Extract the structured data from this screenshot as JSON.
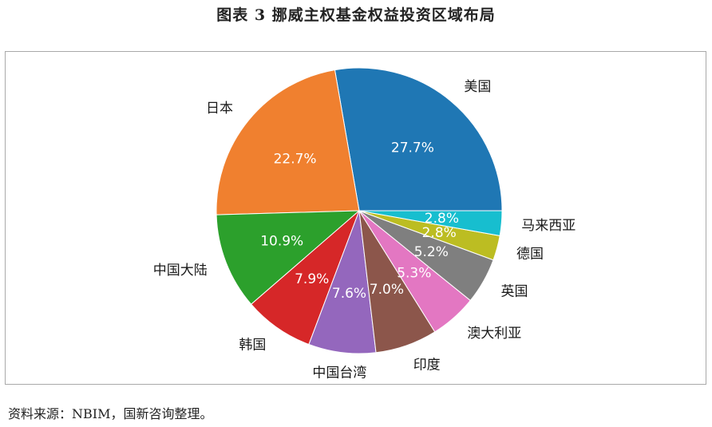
{
  "title": "图表 3  挪威主权基金权益投资区域布局",
  "source": "资料来源：NBIM，国新咨询整理。",
  "chart_data": {
    "type": "pie",
    "title": "",
    "start_angle_deg": 0,
    "direction": "counterclockwise",
    "slices": [
      {
        "label": "美国",
        "value": 27.7,
        "value_label": "27.7%",
        "color": "#1f77b4"
      },
      {
        "label": "日本",
        "value": 22.7,
        "value_label": "22.7%",
        "color": "#f0802f"
      },
      {
        "label": "中国大陆",
        "value": 10.9,
        "value_label": "10.9%",
        "color": "#2ca02c"
      },
      {
        "label": "韩国",
        "value": 7.9,
        "value_label": "7.9%",
        "color": "#d62728"
      },
      {
        "label": "中国台湾",
        "value": 7.6,
        "value_label": "7.6%",
        "color": "#9467bd"
      },
      {
        "label": "印度",
        "value": 7.0,
        "value_label": "7.0%",
        "color": "#8c564b"
      },
      {
        "label": "澳大利亚",
        "value": 5.3,
        "value_label": "5.3%",
        "color": "#e377c2"
      },
      {
        "label": "英国",
        "value": 5.2,
        "value_label": "5.2%",
        "color": "#7f7f7f"
      },
      {
        "label": "德国",
        "value": 2.8,
        "value_label": "2.8%",
        "color": "#bcbd22"
      },
      {
        "label": "马来西亚",
        "value": 2.8,
        "value_label": "2.8%",
        "color": "#17becf"
      }
    ]
  }
}
